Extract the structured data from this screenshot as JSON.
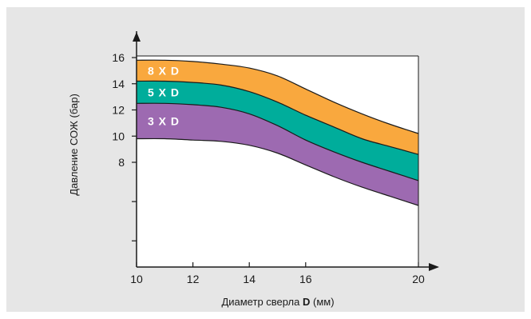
{
  "chart_data": {
    "type": "area",
    "title": "",
    "xlabel": {
      "prefix": "Диаметр сверла ",
      "bold": "D",
      "suffix": " (мм)"
    },
    "ylabel": "Давление СОЖ (бар)",
    "xlim": [
      10,
      20
    ],
    "ylim": [
      0,
      16.5
    ],
    "x_ticks": [
      "10",
      "12",
      "14",
      "16",
      "20"
    ],
    "x_tick_values": [
      10,
      12,
      14,
      16,
      20
    ],
    "y_ticks": [
      "16",
      "14",
      "12",
      "10",
      "8"
    ],
    "y_tick_values": [
      16,
      14,
      12,
      10,
      8
    ],
    "y_unlabeled_ticks": [
      5,
      2
    ],
    "grid": false,
    "x": [
      10,
      11,
      12,
      13,
      14,
      15,
      16,
      17,
      18,
      19,
      20
    ],
    "boundaries": {
      "top": [
        15.8,
        15.8,
        15.7,
        15.5,
        15.2,
        14.6,
        13.6,
        12.6,
        11.7,
        10.9,
        10.2
      ],
      "mid_hi": [
        14.2,
        14.2,
        14.1,
        13.9,
        13.4,
        12.6,
        11.6,
        10.7,
        9.8,
        9.2,
        8.6
      ],
      "mid_lo": [
        12.5,
        12.5,
        12.4,
        12.2,
        11.7,
        10.8,
        9.7,
        8.8,
        8.0,
        7.3,
        6.6
      ],
      "bottom": [
        9.8,
        9.8,
        9.7,
        9.6,
        9.3,
        8.7,
        7.8,
        6.9,
        6.1,
        5.4,
        4.7
      ]
    },
    "series": [
      {
        "name": "8 X D",
        "upper": "top",
        "lower": "mid_hi",
        "color": "#f9a83e"
      },
      {
        "name": "5 X D",
        "upper": "mid_hi",
        "lower": "mid_lo",
        "color": "#00ad9b"
      },
      {
        "name": "3 X D",
        "upper": "mid_lo",
        "lower": "bottom",
        "color": "#9d6ab1"
      }
    ],
    "colors": {
      "panel": "#e6e6e6",
      "plot": "#ffffff",
      "axis": "#1a1a1a"
    }
  }
}
